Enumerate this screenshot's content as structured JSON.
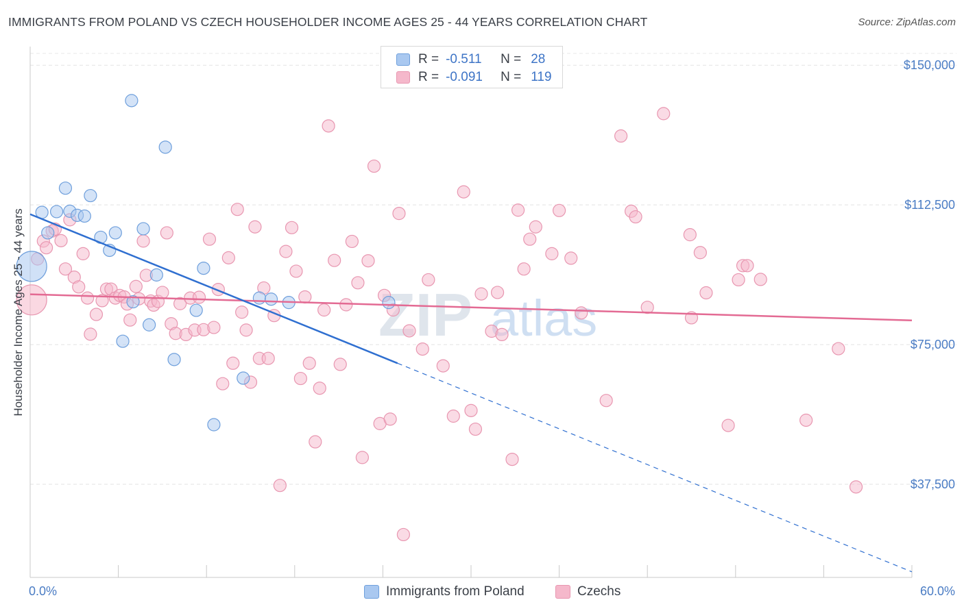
{
  "header": {
    "title": "IMMIGRANTS FROM POLAND VS CZECH HOUSEHOLDER INCOME AGES 25 - 44 YEARS CORRELATION CHART",
    "source": "Source: ZipAtlas.com"
  },
  "watermark": {
    "zip": "ZIP",
    "atlas": "atlas"
  },
  "legend": {
    "r_label": "R =",
    "n_label": "N =",
    "rows": [
      {
        "r": "-0.511",
        "n": "28",
        "color": "#a9c8f0"
      },
      {
        "r": "-0.091",
        "n": "119",
        "color": "#f5b8cb"
      }
    ]
  },
  "bottom_legend": [
    {
      "label": "Immigrants from Poland"
    },
    {
      "label": "Czechs"
    }
  ],
  "colors": {
    "poland_fill": "#a9c8f0",
    "poland_stroke": "#6e9fdc",
    "poland_line": "#2f6fd0",
    "czech_fill": "#f5b8cb",
    "czech_stroke": "#e896b0",
    "czech_line": "#e36a93",
    "axis_tick_text": "#4a7cc4"
  },
  "chart_data": {
    "type": "scatter",
    "title": "IMMIGRANTS FROM POLAND VS CZECH HOUSEHOLDER INCOME AGES 25 - 44 YEARS CORRELATION CHART",
    "xlabel": "",
    "ylabel": "Householder Income Ages 25 - 44 years",
    "xlim": [
      0,
      60
    ],
    "ylim": [
      12500,
      155000
    ],
    "x_tick_labels": [
      "0.0%",
      "60.0%"
    ],
    "y_ticks": [
      37500,
      75000,
      112500,
      150000
    ],
    "y_tick_labels": [
      "$37,500",
      "$75,000",
      "$112,500",
      "$150,000"
    ],
    "grid": true,
    "series": [
      {
        "name": "Immigrants from Poland",
        "R": -0.511,
        "N": 28,
        "trend": {
          "x": [
            0,
            25
          ],
          "y": [
            110000,
            70000
          ]
        },
        "trend_extended": {
          "x": [
            25,
            60
          ],
          "y": [
            70000,
            14000
          ]
        },
        "points": [
          {
            "x": 0.1,
            "y": 96000,
            "big": true
          },
          {
            "x": 0.8,
            "y": 110500
          },
          {
            "x": 1.2,
            "y": 105000
          },
          {
            "x": 1.8,
            "y": 110700
          },
          {
            "x": 2.4,
            "y": 117000
          },
          {
            "x": 2.7,
            "y": 110800
          },
          {
            "x": 3.2,
            "y": 109700
          },
          {
            "x": 3.7,
            "y": 109500
          },
          {
            "x": 4.1,
            "y": 115000
          },
          {
            "x": 4.8,
            "y": 103800
          },
          {
            "x": 5.4,
            "y": 100300
          },
          {
            "x": 5.8,
            "y": 105000
          },
          {
            "x": 6.9,
            "y": 140500
          },
          {
            "x": 7.0,
            "y": 86500
          },
          {
            "x": 6.3,
            "y": 75900
          },
          {
            "x": 7.7,
            "y": 106100
          },
          {
            "x": 8.1,
            "y": 80300
          },
          {
            "x": 8.6,
            "y": 93700
          },
          {
            "x": 9.2,
            "y": 128000
          },
          {
            "x": 9.8,
            "y": 71000
          },
          {
            "x": 11.3,
            "y": 84200
          },
          {
            "x": 11.8,
            "y": 95500
          },
          {
            "x": 12.5,
            "y": 53500
          },
          {
            "x": 14.5,
            "y": 66000
          },
          {
            "x": 15.6,
            "y": 87500
          },
          {
            "x": 16.4,
            "y": 87200
          },
          {
            "x": 17.6,
            "y": 86300
          },
          {
            "x": 24.4,
            "y": 86300
          }
        ]
      },
      {
        "name": "Czechs",
        "R": -0.091,
        "N": 119,
        "trend": {
          "x": [
            0,
            60
          ],
          "y": [
            88500,
            81500
          ]
        },
        "points": [
          {
            "x": 0.1,
            "y": 87000,
            "big": true
          },
          {
            "x": 0.5,
            "y": 98000
          },
          {
            "x": 0.9,
            "y": 102800
          },
          {
            "x": 1.1,
            "y": 101000
          },
          {
            "x": 1.5,
            "y": 105500
          },
          {
            "x": 1.7,
            "y": 106000
          },
          {
            "x": 2.1,
            "y": 102900
          },
          {
            "x": 2.4,
            "y": 95300
          },
          {
            "x": 2.7,
            "y": 108500
          },
          {
            "x": 3.0,
            "y": 93100
          },
          {
            "x": 3.3,
            "y": 90500
          },
          {
            "x": 3.6,
            "y": 99400
          },
          {
            "x": 3.9,
            "y": 87500
          },
          {
            "x": 4.1,
            "y": 77800
          },
          {
            "x": 4.5,
            "y": 83100
          },
          {
            "x": 4.9,
            "y": 86800
          },
          {
            "x": 5.2,
            "y": 89900
          },
          {
            "x": 5.5,
            "y": 89900
          },
          {
            "x": 5.8,
            "y": 87500
          },
          {
            "x": 6.1,
            "y": 88200
          },
          {
            "x": 6.4,
            "y": 87800
          },
          {
            "x": 6.6,
            "y": 85900
          },
          {
            "x": 6.8,
            "y": 81600
          },
          {
            "x": 7.2,
            "y": 90600
          },
          {
            "x": 7.4,
            "y": 87300
          },
          {
            "x": 7.7,
            "y": 102800
          },
          {
            "x": 7.9,
            "y": 93600
          },
          {
            "x": 8.2,
            "y": 86700
          },
          {
            "x": 8.4,
            "y": 85600
          },
          {
            "x": 8.7,
            "y": 86600
          },
          {
            "x": 9.0,
            "y": 89000
          },
          {
            "x": 9.3,
            "y": 105000
          },
          {
            "x": 9.6,
            "y": 80600
          },
          {
            "x": 9.9,
            "y": 78000
          },
          {
            "x": 10.2,
            "y": 86000
          },
          {
            "x": 10.6,
            "y": 77700
          },
          {
            "x": 10.9,
            "y": 87500
          },
          {
            "x": 11.2,
            "y": 78900
          },
          {
            "x": 11.5,
            "y": 87700
          },
          {
            "x": 11.8,
            "y": 79000
          },
          {
            "x": 12.2,
            "y": 103300
          },
          {
            "x": 12.5,
            "y": 79600
          },
          {
            "x": 12.8,
            "y": 89800
          },
          {
            "x": 13.1,
            "y": 64500
          },
          {
            "x": 13.5,
            "y": 98300
          },
          {
            "x": 13.8,
            "y": 70000
          },
          {
            "x": 14.1,
            "y": 111300
          },
          {
            "x": 14.4,
            "y": 83700
          },
          {
            "x": 14.7,
            "y": 78900
          },
          {
            "x": 15.0,
            "y": 64900
          },
          {
            "x": 15.3,
            "y": 106600
          },
          {
            "x": 15.6,
            "y": 71300
          },
          {
            "x": 15.9,
            "y": 90200
          },
          {
            "x": 16.2,
            "y": 71300
          },
          {
            "x": 16.6,
            "y": 82800
          },
          {
            "x": 17.0,
            "y": 37200
          },
          {
            "x": 17.4,
            "y": 100000
          },
          {
            "x": 17.8,
            "y": 106400
          },
          {
            "x": 18.1,
            "y": 94700
          },
          {
            "x": 18.4,
            "y": 65900
          },
          {
            "x": 18.7,
            "y": 87800
          },
          {
            "x": 19.0,
            "y": 70000
          },
          {
            "x": 19.4,
            "y": 48900
          },
          {
            "x": 19.7,
            "y": 63300
          },
          {
            "x": 20.0,
            "y": 84300
          },
          {
            "x": 20.3,
            "y": 133700
          },
          {
            "x": 20.7,
            "y": 97600
          },
          {
            "x": 21.1,
            "y": 69700
          },
          {
            "x": 21.5,
            "y": 85700
          },
          {
            "x": 21.9,
            "y": 102700
          },
          {
            "x": 22.3,
            "y": 91600
          },
          {
            "x": 22.6,
            "y": 44700
          },
          {
            "x": 23.0,
            "y": 97500
          },
          {
            "x": 23.4,
            "y": 122900
          },
          {
            "x": 23.8,
            "y": 53800
          },
          {
            "x": 24.1,
            "y": 88200
          },
          {
            "x": 24.5,
            "y": 55000
          },
          {
            "x": 24.7,
            "y": 84300
          },
          {
            "x": 25.1,
            "y": 110200
          },
          {
            "x": 25.4,
            "y": 24000
          },
          {
            "x": 25.8,
            "y": 78700
          },
          {
            "x": 26.7,
            "y": 73800
          },
          {
            "x": 27.1,
            "y": 92400
          },
          {
            "x": 28.1,
            "y": 69300
          },
          {
            "x": 28.8,
            "y": 55800
          },
          {
            "x": 29.5,
            "y": 116000
          },
          {
            "x": 30.0,
            "y": 57300
          },
          {
            "x": 30.3,
            "y": 52300
          },
          {
            "x": 30.7,
            "y": 88600
          },
          {
            "x": 31.4,
            "y": 78600
          },
          {
            "x": 31.8,
            "y": 89000
          },
          {
            "x": 32.1,
            "y": 77700
          },
          {
            "x": 32.8,
            "y": 44200
          },
          {
            "x": 33.2,
            "y": 111100
          },
          {
            "x": 33.6,
            "y": 95300
          },
          {
            "x": 34.0,
            "y": 103300
          },
          {
            "x": 34.4,
            "y": 106600
          },
          {
            "x": 35.5,
            "y": 99400
          },
          {
            "x": 36.0,
            "y": 111000
          },
          {
            "x": 36.8,
            "y": 98200
          },
          {
            "x": 37.5,
            "y": 83500
          },
          {
            "x": 39.2,
            "y": 60000
          },
          {
            "x": 40.2,
            "y": 131000
          },
          {
            "x": 40.9,
            "y": 110800
          },
          {
            "x": 41.2,
            "y": 109300
          },
          {
            "x": 42.0,
            "y": 85000
          },
          {
            "x": 43.1,
            "y": 137000
          },
          {
            "x": 44.9,
            "y": 104500
          },
          {
            "x": 45.0,
            "y": 82200
          },
          {
            "x": 45.6,
            "y": 99700
          },
          {
            "x": 46.0,
            "y": 88900
          },
          {
            "x": 47.5,
            "y": 53300
          },
          {
            "x": 48.2,
            "y": 92400
          },
          {
            "x": 48.5,
            "y": 96200
          },
          {
            "x": 48.8,
            "y": 96200
          },
          {
            "x": 49.7,
            "y": 92500
          },
          {
            "x": 52.8,
            "y": 54700
          },
          {
            "x": 55.0,
            "y": 73900
          },
          {
            "x": 56.2,
            "y": 36800
          }
        ]
      }
    ]
  }
}
